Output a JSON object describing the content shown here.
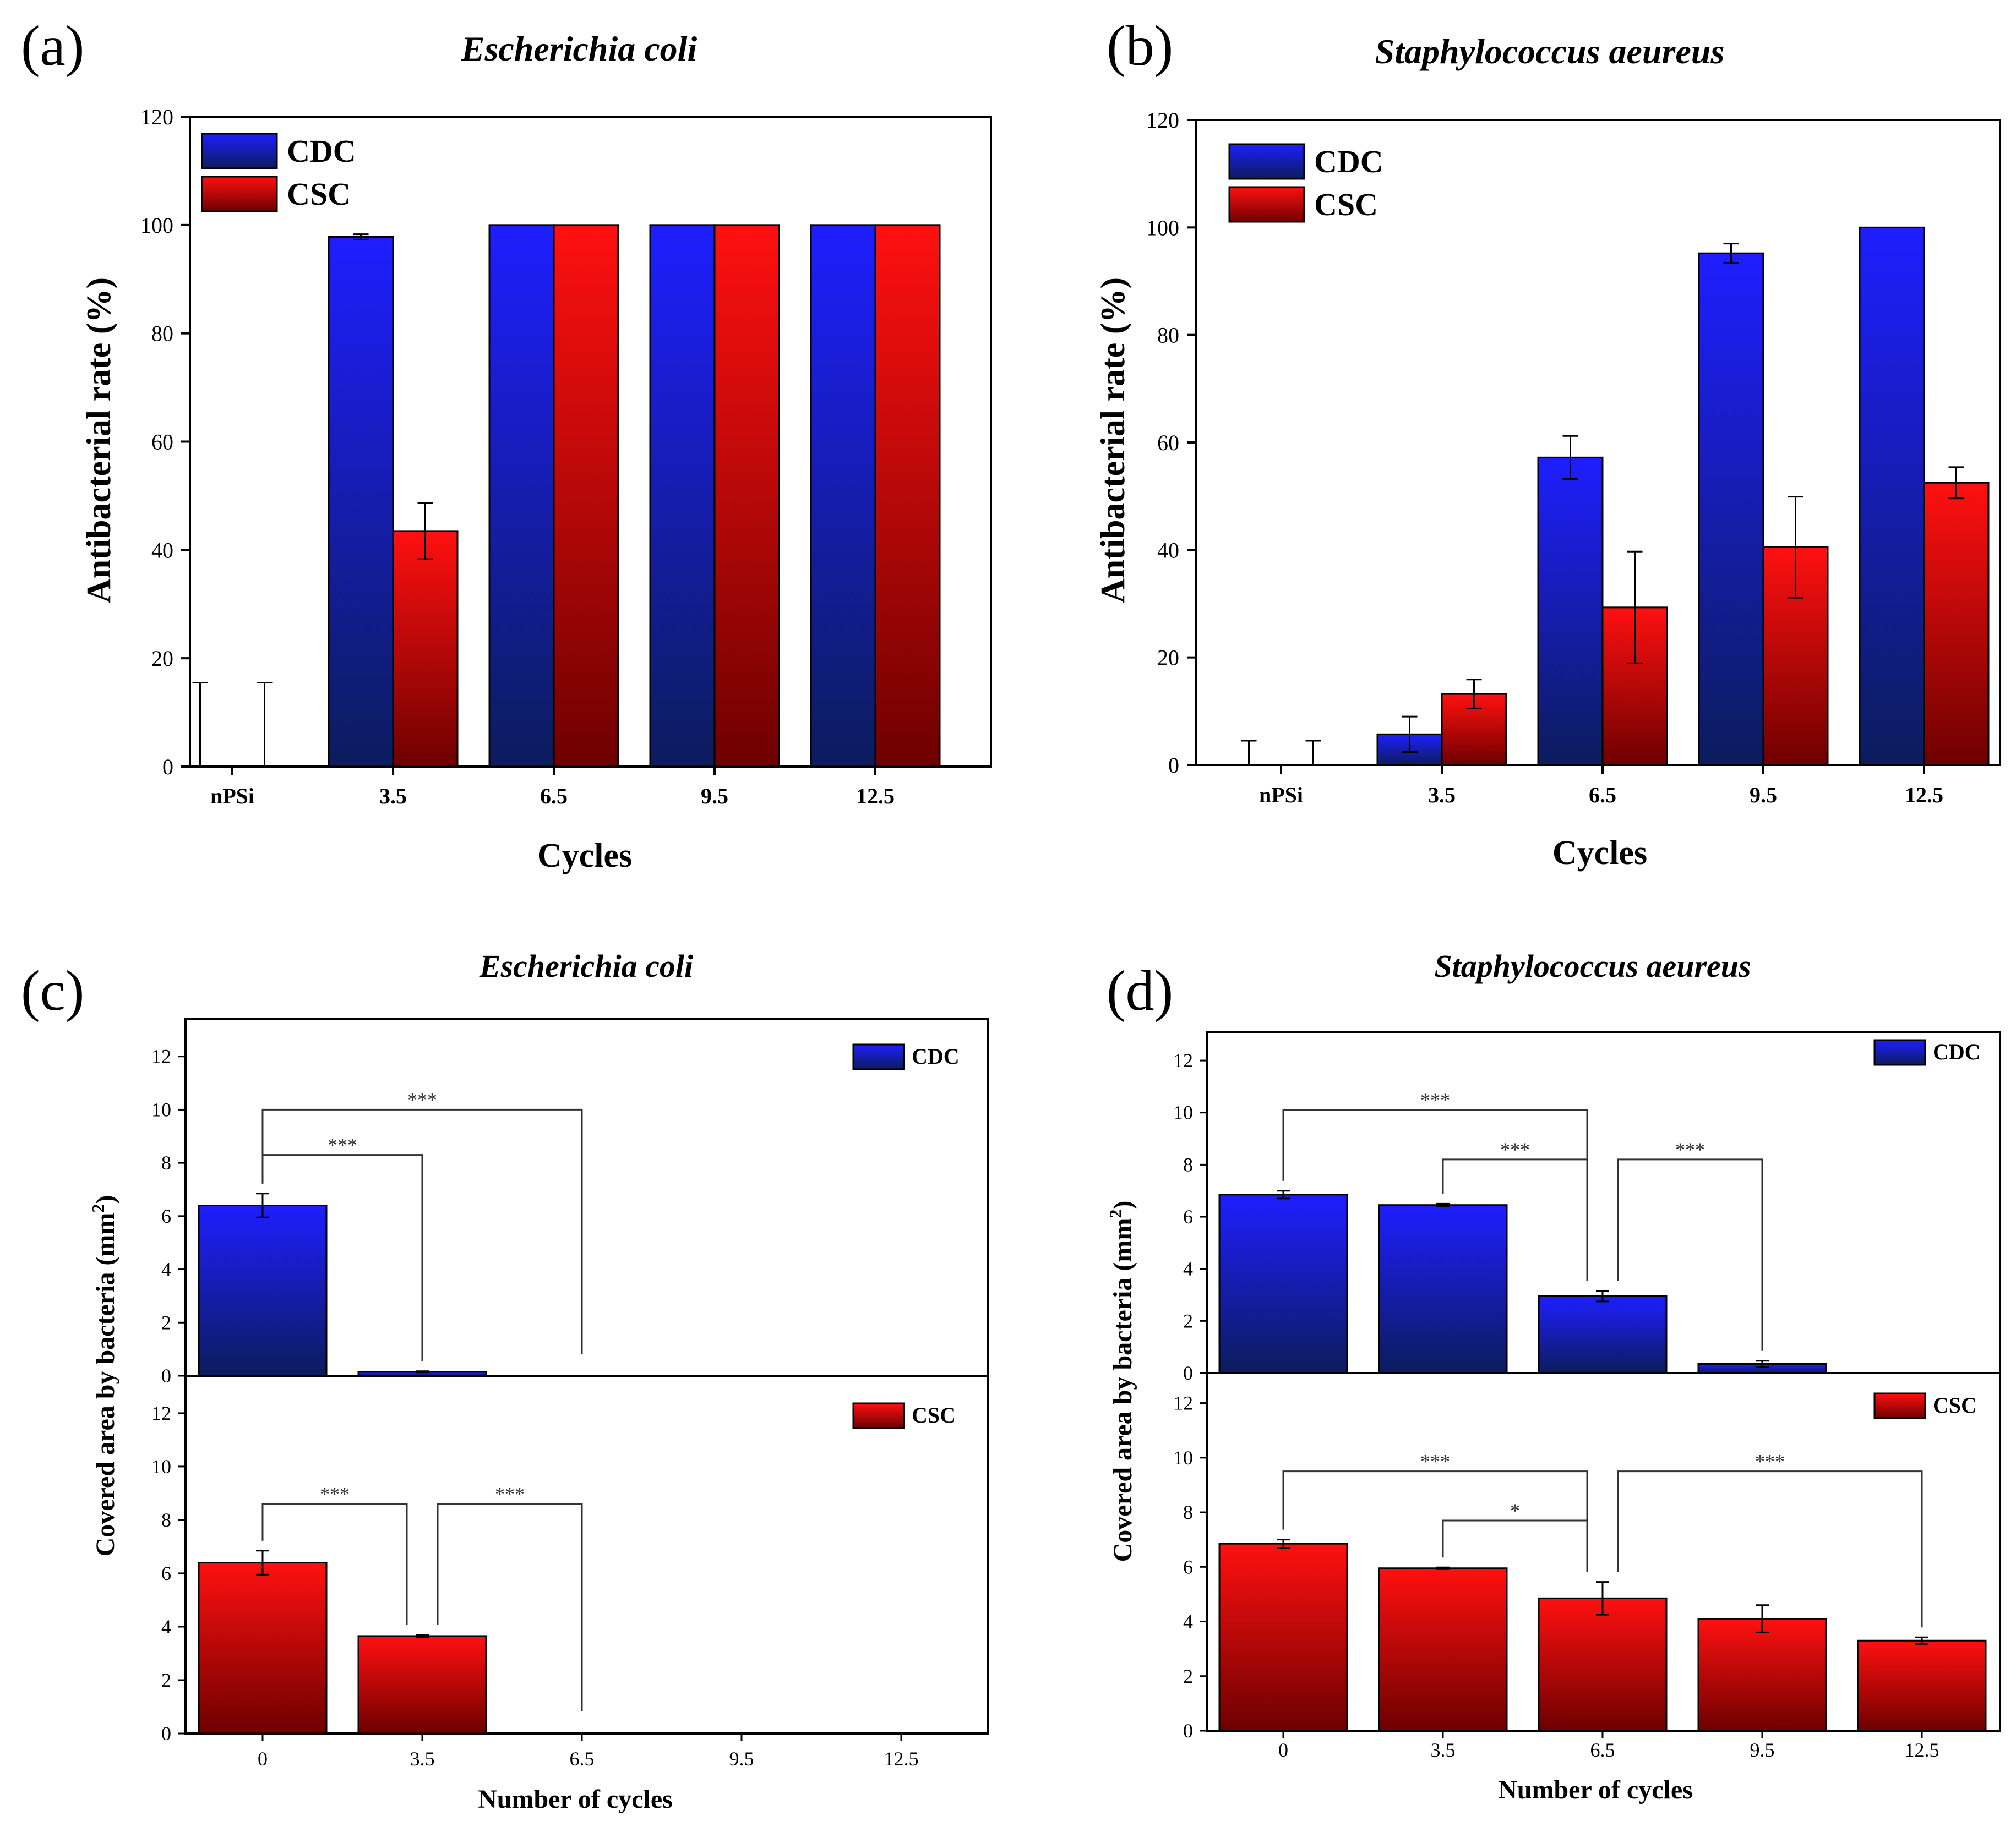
{
  "figure": {
    "panels": [
      {
        "label": "(a)",
        "title": "Escherichia coli"
      },
      {
        "label": "(b)",
        "title": "Staphylococcus aeureus"
      },
      {
        "label": "(c)",
        "title": "Escherichia coli"
      },
      {
        "label": "(d)",
        "title": "Staphylococcus aeureus"
      }
    ]
  },
  "colors": {
    "cdc_top": "#1e1eff",
    "cdc_bottom": "#0c1c5c",
    "csc_top": "#ff1010",
    "csc_bottom": "#6e0000"
  },
  "chart_data": [
    {
      "panel": "(a)",
      "type": "bar",
      "title": "Escherichia coli",
      "xlabel": "Cycles",
      "ylabel": "Antibacterial rate (%)",
      "categories": [
        "nPSi",
        "3.5",
        "6.5",
        "9.5",
        "12.5"
      ],
      "ylim": [
        0,
        120
      ],
      "yticks": [
        0,
        20,
        40,
        60,
        80,
        100,
        120
      ],
      "legend": "top-left",
      "series": [
        {
          "name": "CDC",
          "values": [
            0,
            97.8,
            100,
            100,
            100
          ],
          "errors": [
            15.5,
            0.5,
            0,
            0,
            0
          ]
        },
        {
          "name": "CSC",
          "values": [
            0,
            43.5,
            100,
            100,
            100
          ],
          "errors": [
            15.5,
            5.2,
            0,
            0,
            0
          ]
        }
      ]
    },
    {
      "panel": "(b)",
      "type": "bar",
      "title": "Staphylococcus aeureus",
      "xlabel": "Cycles",
      "ylabel": "Antibacterial rate (%)",
      "categories": [
        "nPSi",
        "3.5",
        "6.5",
        "9.5",
        "12.5"
      ],
      "ylim": [
        0,
        120
      ],
      "yticks": [
        0,
        20,
        40,
        60,
        80,
        100,
        120
      ],
      "legend": "top-left",
      "series": [
        {
          "name": "CDC",
          "values": [
            0,
            5.7,
            57.2,
            95.2,
            100
          ],
          "errors": [
            4.5,
            3.3,
            4,
            1.8,
            0
          ]
        },
        {
          "name": "CSC",
          "values": [
            0,
            13.2,
            29.3,
            40.5,
            52.5
          ],
          "errors": [
            4.5,
            2.7,
            10.4,
            9.4,
            2.9
          ]
        }
      ]
    },
    {
      "panel": "(c)",
      "type": "bar",
      "title": "Escherichia coli",
      "xlabel": "Number of cycles",
      "ylabel": "Covered area  by bacteria (mm",
      "ylabel_sup": "2",
      "ylabel_end": ")",
      "categories": [
        "0",
        "3.5",
        "6.5",
        "9.5",
        "12.5"
      ],
      "ylim": [
        0,
        13.4
      ],
      "yticks": [
        0,
        2,
        4,
        6,
        8,
        10,
        12
      ],
      "legend": "top-right",
      "series": [
        {
          "name": "CDC",
          "values": [
            6.4,
            0.15,
            null,
            null,
            null
          ],
          "errors": [
            0.45,
            0.02,
            null,
            null,
            null
          ]
        },
        {
          "name": "CSC",
          "values": [
            6.4,
            3.65,
            null,
            null,
            null
          ],
          "errors": [
            0.45,
            0.05,
            null,
            null,
            null
          ]
        }
      ],
      "annotations": [
        {
          "series": "CDC",
          "from": "0",
          "to": "6.5",
          "level": 10.0,
          "text": "***"
        },
        {
          "series": "CDC",
          "from": "0",
          "to": "3.5",
          "level": 8.3,
          "text": "***"
        },
        {
          "series": "CSC",
          "from": "0",
          "to": "3.5",
          "level": 8.6,
          "text": "***"
        },
        {
          "series": "CSC",
          "from": "3.5",
          "to": "6.5",
          "level": 8.6,
          "text": "***"
        }
      ]
    },
    {
      "panel": "(d)",
      "type": "bar",
      "title": "Staphylococcus aeureus",
      "xlabel": "Number of cycles",
      "ylabel": "Covered area  by bacteria (mm",
      "ylabel_sup": "2",
      "ylabel_end": ")",
      "categories": [
        "0",
        "3.5",
        "6.5",
        "9.5",
        "12.5"
      ],
      "ylim": [
        0,
        13.1
      ],
      "yticks": [
        0,
        2,
        4,
        6,
        8,
        10,
        12
      ],
      "legend": "top-right",
      "series": [
        {
          "name": "CDC",
          "values": [
            6.85,
            6.45,
            2.95,
            0.35,
            null
          ],
          "errors": [
            0.15,
            0.05,
            0.2,
            0.12,
            null
          ]
        },
        {
          "name": "CSC",
          "values": [
            6.85,
            5.95,
            4.85,
            4.1,
            3.3
          ],
          "errors": [
            0.15,
            0.03,
            0.6,
            0.5,
            0.12
          ]
        }
      ],
      "annotations": [
        {
          "series": "CDC",
          "from": "0",
          "to": "6.5",
          "level": 10.1,
          "text": "***"
        },
        {
          "series": "CDC",
          "from": "3.5",
          "to": "6.5",
          "level": 8.2,
          "text": "***"
        },
        {
          "series": "CDC",
          "from": "6.5",
          "to": "9.5",
          "level": 8.2,
          "text": "***"
        },
        {
          "series": "CSC",
          "from": "0",
          "to": "6.5",
          "level": 9.5,
          "text": "***"
        },
        {
          "series": "CSC",
          "from": "3.5",
          "to": "6.5",
          "level": 7.7,
          "text": "*"
        },
        {
          "series": "CSC",
          "from": "6.5",
          "to": "12.5",
          "level": 9.5,
          "text": "***"
        }
      ]
    }
  ]
}
